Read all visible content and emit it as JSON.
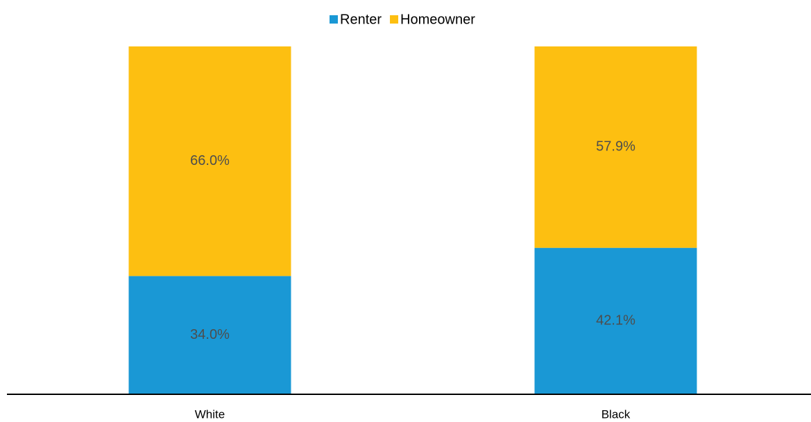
{
  "chart_data": {
    "type": "stacked_bar",
    "categories": [
      "White",
      "Black"
    ],
    "series": [
      {
        "name": "Renter",
        "color": "#1a98d5",
        "values": [
          34.0,
          42.1
        ],
        "value_labels": [
          "34.0%",
          "42.1%"
        ]
      },
      {
        "name": "Homeowner",
        "color": "#fdbf11",
        "values": [
          66.0,
          57.9
        ],
        "value_labels": [
          "66.0%",
          "57.9%"
        ]
      }
    ],
    "ylim": [
      0,
      100
    ],
    "legend": "top"
  }
}
